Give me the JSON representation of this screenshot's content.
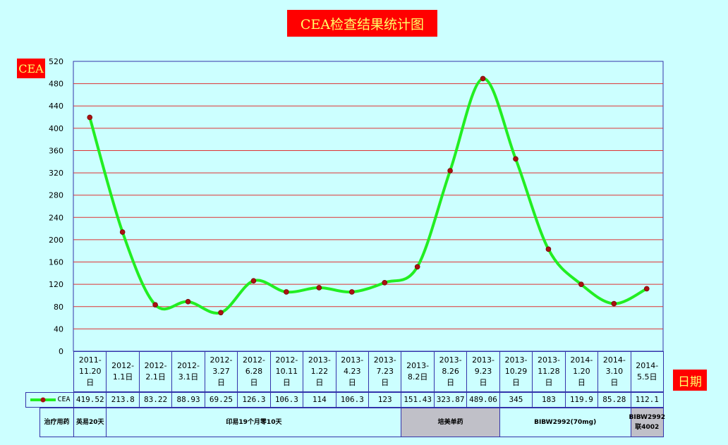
{
  "title": "CEA检查结果统计图",
  "y_axis_label": "CEA",
  "x_axis_label": "日期",
  "legend_label": "CEA",
  "treatment_header": "治疗用药",
  "colors": {
    "line": "#22ee22",
    "marker": "#aa1111",
    "grid": "#dd3333",
    "border": "#3333aa"
  },
  "chart_data": {
    "type": "line",
    "title": "CEA检查结果统计图",
    "ylabel": "CEA",
    "xlabel": "日期",
    "ylim": [
      0,
      520
    ],
    "yticks": [
      0,
      40,
      80,
      120,
      160,
      200,
      240,
      280,
      320,
      360,
      400,
      440,
      480,
      520
    ],
    "grid": true,
    "legend": "bottom-left",
    "categories": [
      "2011-11.20日",
      "2012-1.1日",
      "2012-2.1日",
      "2012-3.1日",
      "2012-3.27日",
      "2012-6.28日",
      "2012-10.11日",
      "2013-1.22日",
      "2013-4.23日",
      "2013-7.23日",
      "2013-8.2日",
      "2013-8.26日",
      "2013-9.23日",
      "2013-10.29日",
      "2013-11.28日",
      "2014-1.20日",
      "2014-3.10日",
      "2014-5.5日"
    ],
    "category_lines": [
      [
        "2011-",
        "11.20",
        "日"
      ],
      [
        "2012-",
        "1.1日"
      ],
      [
        "2012-",
        "2.1日"
      ],
      [
        "2012-",
        "3.1日"
      ],
      [
        "2012-",
        "3.27",
        "日"
      ],
      [
        "2012-",
        "6.28",
        "日"
      ],
      [
        "2012-",
        "10.11",
        "日"
      ],
      [
        "2013-",
        "1.22",
        "日"
      ],
      [
        "2013-",
        "4.23",
        "日"
      ],
      [
        "2013-",
        "7.23",
        "日"
      ],
      [
        "2013-",
        "8.2日"
      ],
      [
        "2013-",
        "8.26",
        "日"
      ],
      [
        "2013-",
        "9.23",
        "日"
      ],
      [
        "2013-",
        "10.29",
        "日"
      ],
      [
        "2013-",
        "11.28",
        "日"
      ],
      [
        "2014-",
        "1.20",
        "日"
      ],
      [
        "2014-",
        "3.10",
        "日"
      ],
      [
        "2014-",
        "5.5日"
      ]
    ],
    "series": [
      {
        "name": "CEA",
        "values": [
          419.52,
          213.8,
          83.22,
          88.93,
          69.25,
          126.3,
          106.3,
          114,
          106.3,
          123,
          151.43,
          323.87,
          489.06,
          345,
          183,
          119.9,
          85.28,
          112.1
        ],
        "labels": [
          "419.52",
          "213.8",
          "83.22",
          "88.93",
          "69.25",
          "126.3",
          "106.3",
          "114",
          "106.3",
          "123",
          "151.43",
          "323.87",
          "489.06",
          "345",
          "183",
          "119.9",
          "85.28",
          "112.1"
        ]
      }
    ]
  },
  "treatments": [
    {
      "label": "英易20天",
      "span": [
        1,
        1
      ],
      "shaded": false
    },
    {
      "label": "印易19个月零10天",
      "span": [
        2,
        10
      ],
      "shaded": false
    },
    {
      "label": "培美单药",
      "span": [
        11,
        13
      ],
      "shaded": true
    },
    {
      "label": "BIBW2992(70mg)",
      "span": [
        14,
        17
      ],
      "shaded": false
    },
    {
      "label": "BIBW2992联4002",
      "span": [
        18,
        18
      ],
      "shaded": true
    }
  ]
}
